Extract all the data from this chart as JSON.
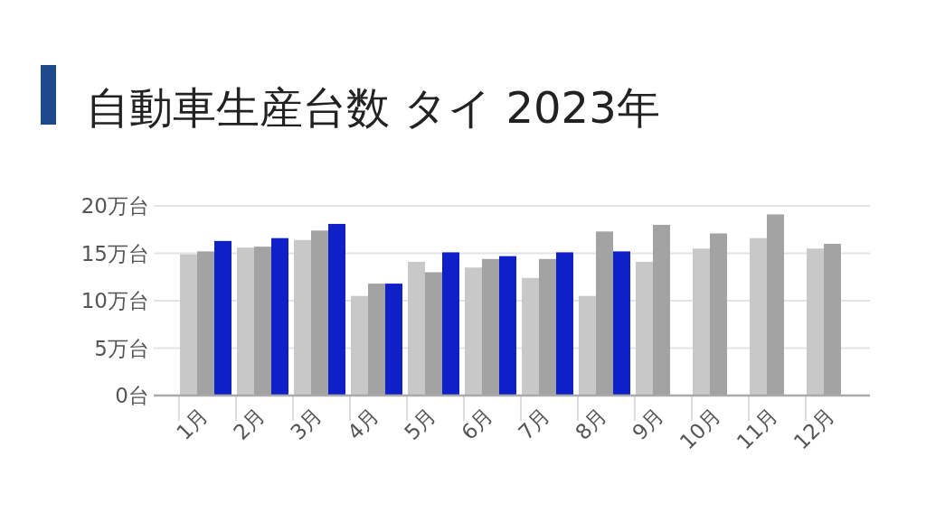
{
  "chart_data": {
    "type": "bar",
    "title": "自動車生産台数 タイ 2023年",
    "categories": [
      "1月",
      "2月",
      "3月",
      "4月",
      "5月",
      "6月",
      "7月",
      "8月",
      "9月",
      "10月",
      "11月",
      "12月"
    ],
    "series": [
      {
        "color": "#c8c8c8",
        "values": [
          14.9,
          15.6,
          16.4,
          10.5,
          14.1,
          13.5,
          12.4,
          10.5,
          14.1,
          15.5,
          16.6,
          15.5
        ]
      },
      {
        "color": "#a3a3a3",
        "values": [
          15.2,
          15.7,
          17.4,
          11.8,
          13.0,
          14.4,
          14.4,
          17.3,
          18.0,
          17.1,
          19.1,
          16.0
        ]
      },
      {
        "color": "#1020c8",
        "values": [
          16.3,
          16.6,
          18.1,
          11.8,
          15.1,
          14.7,
          15.1,
          15.2,
          null,
          null,
          null,
          null
        ]
      }
    ],
    "ylim": [
      0,
      20
    ],
    "yticks": [
      {
        "value": 0,
        "label": "0台"
      },
      {
        "value": 5,
        "label": "5万台"
      },
      {
        "value": 10,
        "label": "10万台"
      },
      {
        "value": 15,
        "label": "15万台"
      },
      {
        "value": 20,
        "label": "20万台"
      }
    ],
    "grid": "y"
  }
}
